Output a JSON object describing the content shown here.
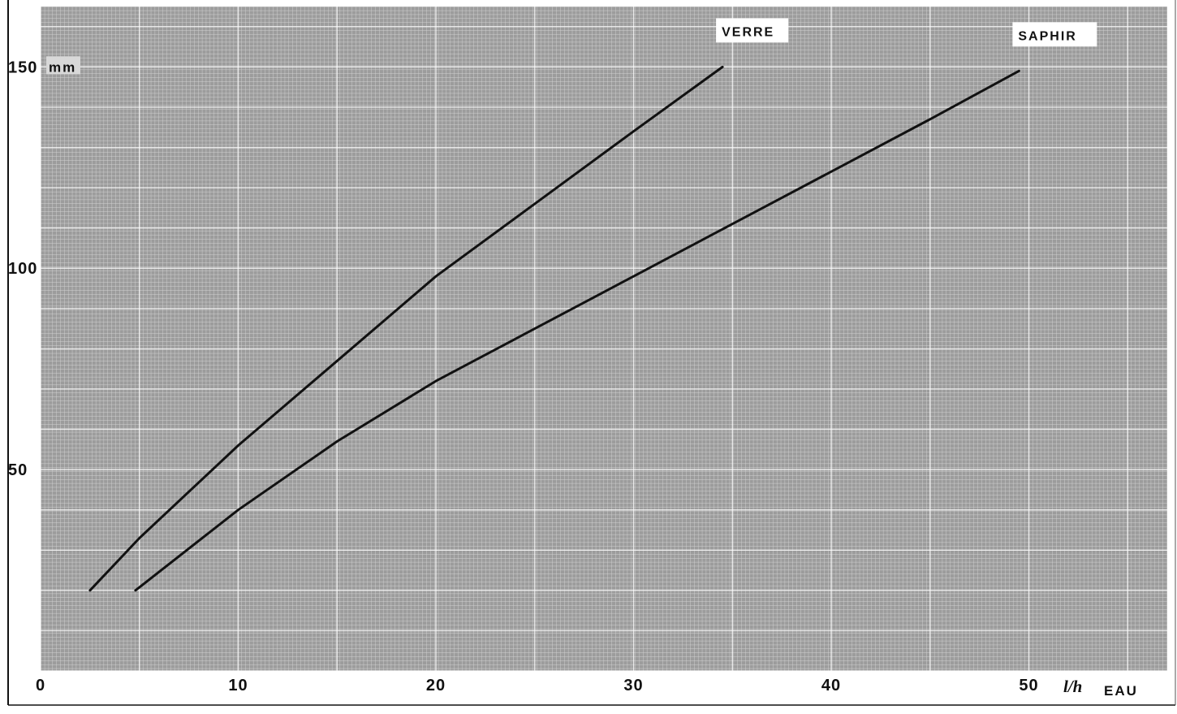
{
  "chart_data": {
    "type": "line",
    "title": "",
    "xlabel": "l/h EAU",
    "xlabel_unit": "l/h",
    "xlabel_text": "EAU",
    "ylabel": "mm",
    "xlim": [
      0,
      57
    ],
    "ylim": [
      0,
      165
    ],
    "x_ticks": [
      0,
      10,
      20,
      30,
      40,
      50
    ],
    "x_tick_labels": [
      "0",
      "10",
      "20",
      "30",
      "40",
      "50"
    ],
    "y_ticks": [
      50,
      100,
      150
    ],
    "y_tick_labels": [
      "50",
      "100",
      "150"
    ],
    "y_top_unit": "mm",
    "grid": true,
    "grid_style": "graph paper (minor 1 unit, major 5/10 units)",
    "background_color": "#9c9c9c",
    "line_color": "#111111",
    "series": [
      {
        "name": "VERRE",
        "x": [
          2.5,
          5,
          10,
          15,
          20,
          25,
          30,
          34.5
        ],
        "y": [
          20,
          33,
          56,
          77,
          98,
          116,
          134,
          150
        ]
      },
      {
        "name": "SAPHIR",
        "x": [
          4.8,
          10,
          15,
          20,
          25,
          30,
          35,
          40,
          45,
          49.5
        ],
        "y": [
          20,
          40,
          57,
          72,
          85,
          98,
          111,
          124,
          137,
          149
        ]
      }
    ]
  }
}
